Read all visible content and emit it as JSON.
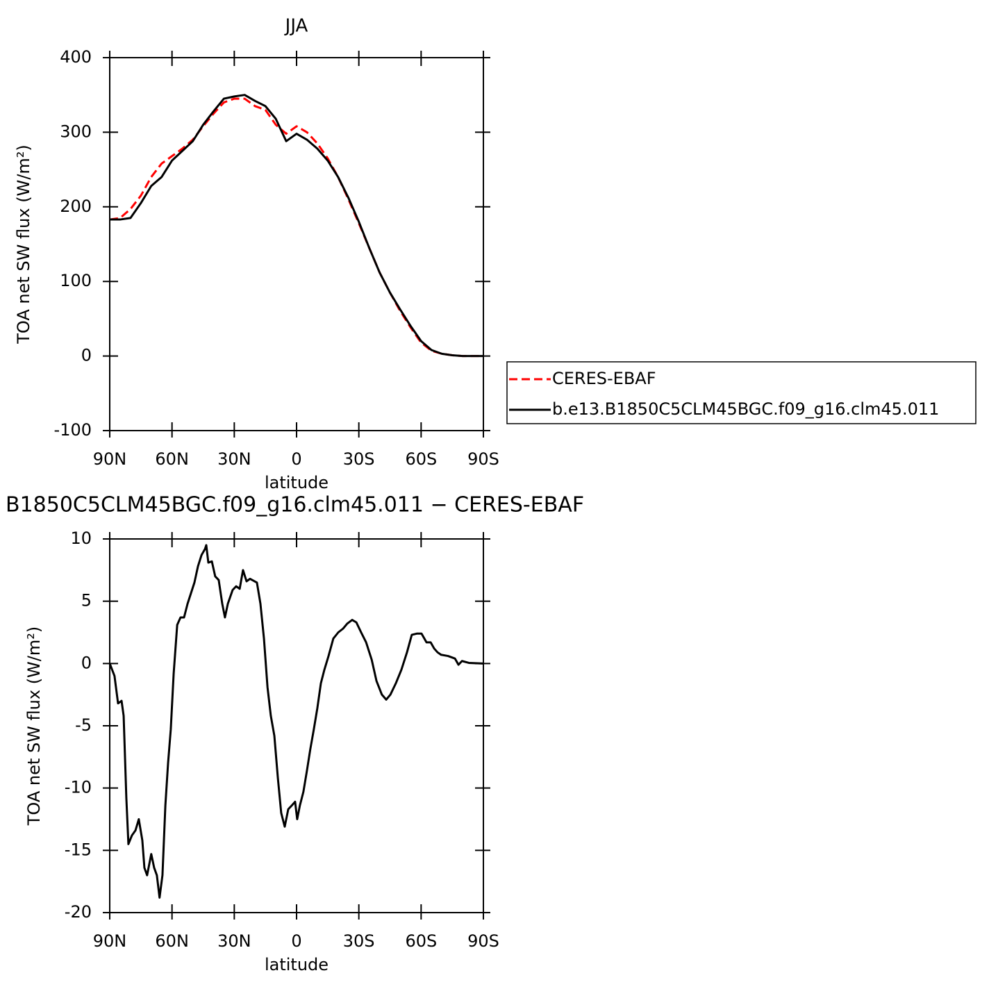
{
  "chart_data": [
    {
      "type": "line",
      "title": "JJA",
      "xlabel": "latitude",
      "ylabel": "TOA net SW flux (W/m²)",
      "xlim": [
        90,
        -90
      ],
      "ylim": [
        -100,
        400
      ],
      "xticks": [
        {
          "value": 90,
          "label": "90N"
        },
        {
          "value": 60,
          "label": "60N"
        },
        {
          "value": 30,
          "label": "30N"
        },
        0,
        {
          "value": -30,
          "label": "30S"
        },
        {
          "value": -60,
          "label": "60S"
        },
        {
          "value": -90,
          "label": "90S"
        }
      ],
      "yticks": [
        -100,
        0,
        100,
        200,
        300,
        400
      ],
      "legend": "outside right",
      "x": [
        90,
        85,
        80,
        75,
        70,
        65,
        60,
        55,
        50,
        45,
        40,
        35,
        30,
        25,
        20,
        15,
        10,
        5,
        0,
        -5,
        -10,
        -15,
        -20,
        -25,
        -30,
        -35,
        -40,
        -45,
        -50,
        -55,
        -60,
        -65,
        -70,
        -75,
        -80,
        -85,
        -90
      ],
      "series": [
        {
          "name": "CERES-EBAF",
          "color": "#ff0000",
          "linestyle": "dashed",
          "values": [
            183,
            185,
            197,
            215,
            240,
            258,
            268,
            278,
            290,
            308,
            325,
            340,
            345,
            345,
            335,
            330,
            310,
            298,
            308,
            300,
            285,
            265,
            240,
            210,
            178,
            145,
            112,
            85,
            60,
            38,
            18,
            7,
            3,
            1,
            0,
            0,
            0
          ]
        },
        {
          "name": "b.e13.B1850C5CLM45BGC.f09_g16.clm45.011",
          "color": "#000000",
          "linestyle": "solid",
          "values": [
            183,
            183,
            185,
            205,
            228,
            240,
            262,
            275,
            288,
            310,
            328,
            345,
            348,
            350,
            342,
            335,
            318,
            288,
            298,
            290,
            278,
            262,
            240,
            212,
            180,
            145,
            112,
            85,
            62,
            40,
            20,
            8,
            3,
            1,
            0,
            0,
            0
          ]
        }
      ]
    },
    {
      "type": "line",
      "title": "B1850C5CLM45BGC.f09_g16.clm45.011 − CERES-EBAF",
      "xlabel": "latitude",
      "ylabel": "TOA net SW flux (W/m²)",
      "xlim": [
        90,
        -90
      ],
      "ylim": [
        -20,
        10
      ],
      "xticks": [
        {
          "value": 90,
          "label": "90N"
        },
        {
          "value": 60,
          "label": "60N"
        },
        {
          "value": 30,
          "label": "30N"
        },
        0,
        {
          "value": -30,
          "label": "30S"
        },
        {
          "value": -60,
          "label": "60S"
        },
        {
          "value": -90,
          "label": "90S"
        }
      ],
      "yticks": [
        -20,
        -15,
        -10,
        -5,
        0,
        5,
        10
      ],
      "x": [
        90,
        87.7,
        86,
        84.3,
        83.3,
        82,
        81,
        79.3,
        77.6,
        76,
        74.3,
        73.3,
        72,
        70,
        68.6,
        67.3,
        66,
        64.6,
        63.2,
        61.9,
        60.6,
        59.2,
        57.5,
        55.9,
        54.2,
        52.5,
        49.2,
        47.5,
        45.8,
        44.1,
        43.5,
        42.5,
        40.8,
        39.2,
        37.5,
        35.8,
        34.5,
        33.1,
        30.8,
        29.1,
        27.4,
        25.8,
        24.1,
        22.4,
        19.1,
        17.4,
        15.7,
        14,
        12.4,
        10.7,
        9,
        7.4,
        5.7,
        4,
        2.3,
        0.7,
        -0.3,
        -1.6,
        -3.3,
        -5,
        -6.6,
        -8.3,
        -10,
        -11.7,
        -13.4,
        -15.4,
        -17.7,
        -20.1,
        -22.4,
        -24.4,
        -26.8,
        -28.8,
        -31.1,
        -33.5,
        -36.2,
        -38.5,
        -41.1,
        -43.2,
        -45.2,
        -47.8,
        -50.5,
        -53.2,
        -55.5,
        -57.9,
        -60.2,
        -62.6,
        -64.6,
        -66.3,
        -67.9,
        -69.6,
        -73,
        -76.3,
        -78,
        -79.7,
        -83,
        -90
      ],
      "series": [
        {
          "color": "#000000",
          "linestyle": "solid",
          "values": [
            0,
            -1,
            -3.2,
            -3,
            -4.2,
            -10.8,
            -14.5,
            -13.8,
            -13.4,
            -12.5,
            -14.2,
            -16.4,
            -17,
            -15.3,
            -16.4,
            -17,
            -18.8,
            -17,
            -11.4,
            -8,
            -5.3,
            -0.8,
            3.1,
            3.7,
            3.7,
            4.8,
            6.5,
            7.8,
            8.7,
            9.2,
            9.5,
            8.1,
            8.2,
            7,
            6.7,
            4.8,
            3.7,
            4.8,
            5.9,
            6.2,
            6,
            7.5,
            6.6,
            6.8,
            6.5,
            4.8,
            2,
            -1.9,
            -4.2,
            -5.8,
            -9.2,
            -12,
            -13.1,
            -11.7,
            -11.4,
            -11.1,
            -12.5,
            -11.4,
            -10.3,
            -8.6,
            -6.9,
            -5.3,
            -3.6,
            -1.6,
            -0.5,
            0.6,
            2,
            2.5,
            2.8,
            3.2,
            3.5,
            3.3,
            2.5,
            1.7,
            0.3,
            -1.4,
            -2.5,
            -2.9,
            -2.5,
            -1.6,
            -0.5,
            0.9,
            2.3,
            2.4,
            2.4,
            1.7,
            1.7,
            1.2,
            0.9,
            0.7,
            0.6,
            0.4,
            -0.1,
            0.2,
            0.05,
            0
          ]
        }
      ]
    }
  ]
}
